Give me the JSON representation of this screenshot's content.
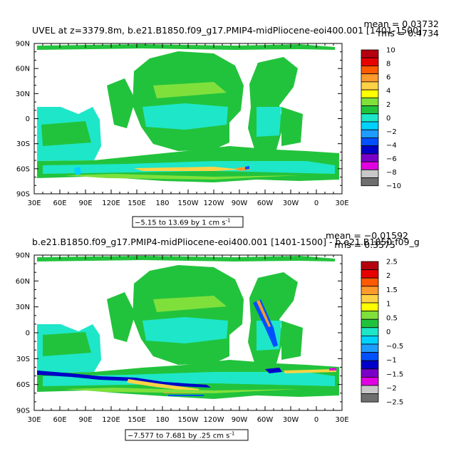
{
  "chart_data": [
    {
      "type": "heatmap",
      "title": "UVEL at z=3379.8m, b.e21.B1850.f09_g17.PMIP4-midPliocene-eoi400.001 [1401-1500]",
      "stat_mean": "mean = 0.03732",
      "stat_rms": "rms = 0.4734",
      "range_note": "−5.15 to 13.69 by 1 cm s",
      "units_exp": "-1",
      "x_ticks": [
        "30E",
        "60E",
        "90E",
        "120E",
        "150E",
        "180",
        "150W",
        "120W",
        "90W",
        "60W",
        "30W",
        "0",
        "30E"
      ],
      "y_ticks": [
        "90N",
        "60N",
        "30N",
        "0",
        "30S",
        "60S",
        "90S"
      ],
      "xlim": [
        30,
        390
      ],
      "ylim": [
        -90,
        90
      ],
      "legend_labels": [
        "10",
        "8",
        "6",
        "4",
        "2",
        "0",
        "−2",
        "−4",
        "−6",
        "−8",
        "−10"
      ],
      "colors": [
        "#b4000f",
        "#e60000",
        "#ff5a00",
        "#ff9a2c",
        "#ffd246",
        "#ffff00",
        "#7fe03c",
        "#22c33c",
        "#1ee6c8",
        "#00d2ff",
        "#1e9cff",
        "#0050ff",
        "#0000c8",
        "#7a00c8",
        "#e100e1",
        "#c8c8c8",
        "#6e6e6e"
      ]
    },
    {
      "type": "heatmap",
      "title": "b.e21.B1850.f09_g17.PMIP4-midPliocene-eoi400.001 [1401-1500] - b.e21.B1850.f09_g",
      "stat_mean": "mean = −0.01592",
      "stat_rms": "rms = 0.3575",
      "range_note": "−7.577 to 7.681 by .25 cm s",
      "units_exp": "-1",
      "x_ticks": [
        "30E",
        "60E",
        "90E",
        "120E",
        "150E",
        "180",
        "150W",
        "120W",
        "90W",
        "60W",
        "30W",
        "0",
        "30E"
      ],
      "y_ticks": [
        "90N",
        "60N",
        "30N",
        "0",
        "30S",
        "60S",
        "90S"
      ],
      "xlim": [
        30,
        390
      ],
      "ylim": [
        -90,
        90
      ],
      "legend_labels": [
        "2.5",
        "2",
        "1.5",
        "1",
        "0.5",
        "0",
        "−0.5",
        "−1",
        "−1.5",
        "−2",
        "−2.5"
      ],
      "colors": [
        "#b4000f",
        "#e60000",
        "#ff5a00",
        "#ff9a2c",
        "#ffd246",
        "#ffff00",
        "#7fe03c",
        "#22c33c",
        "#1ee6c8",
        "#00d2ff",
        "#1e9cff",
        "#0050ff",
        "#0000c8",
        "#7a00c8",
        "#e100e1",
        "#c8c8c8",
        "#6e6e6e"
      ]
    }
  ]
}
